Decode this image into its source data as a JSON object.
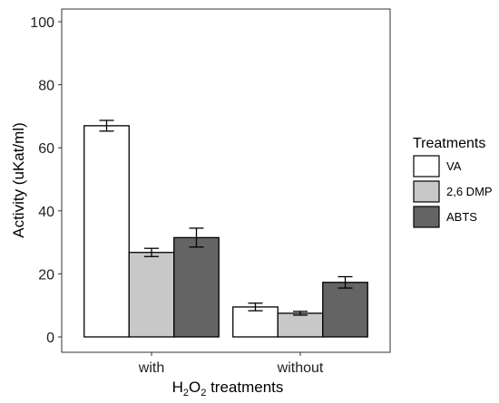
{
  "chart_data": {
    "type": "bar",
    "categories": [
      "with",
      "without"
    ],
    "series": [
      {
        "name": "VA",
        "values": [
          67,
          9.5
        ],
        "errors": [
          1.7,
          1.2
        ],
        "color": "#ffffff"
      },
      {
        "name": "2,6 DMP",
        "values": [
          26.8,
          7.5
        ],
        "errors": [
          1.3,
          0.6
        ],
        "color": "#c8c8c8"
      },
      {
        "name": "ABTS",
        "values": [
          31.5,
          17.3
        ],
        "errors": [
          3.0,
          1.8
        ],
        "color": "#646464"
      }
    ],
    "ylabel": "Activity (uKat/ml)",
    "xlabel_main": "H",
    "xlabel_sub1": "2",
    "xlabel_mid": "O",
    "xlabel_sub2": "2",
    "xlabel_tail": " treatments",
    "ylim": [
      0,
      100
    ],
    "yticks": [
      "0",
      "20",
      "40",
      "60",
      "80",
      "100"
    ],
    "grid": false,
    "legend": {
      "title": "Treatments",
      "position": "right"
    }
  }
}
